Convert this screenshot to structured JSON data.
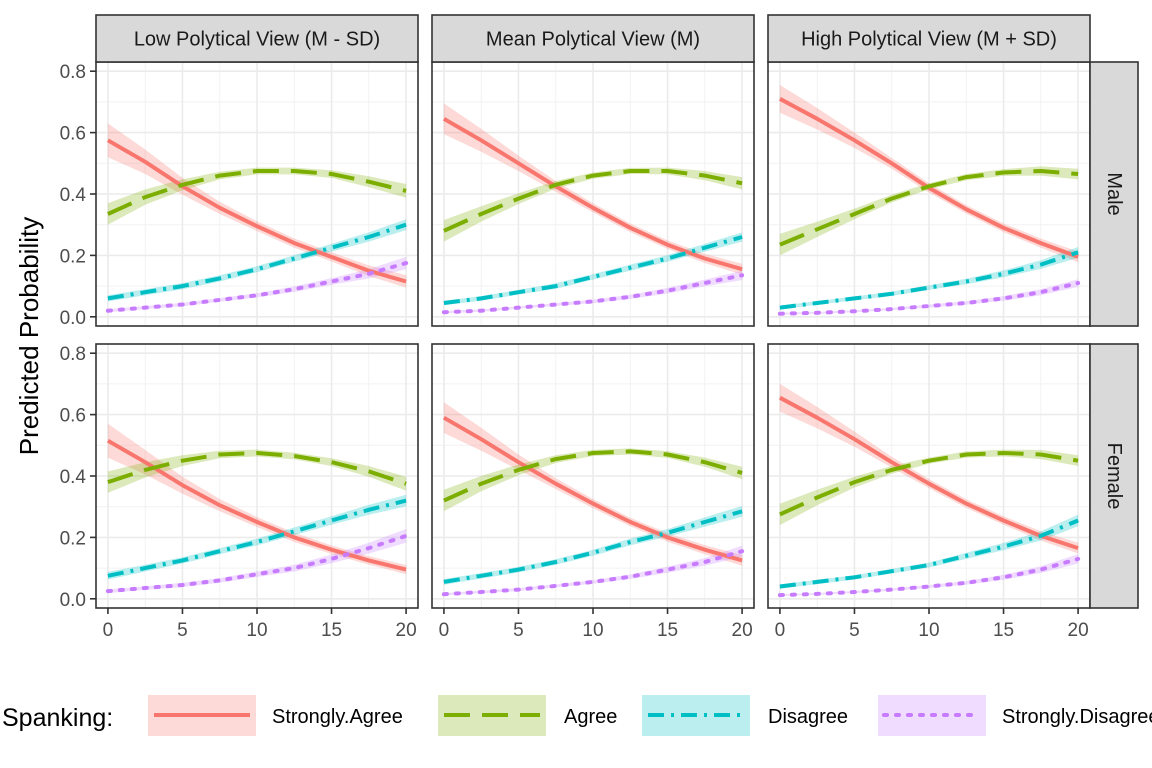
{
  "chart_data": {
    "type": "line",
    "ylabel": "Predicted Probability",
    "xlabel": "",
    "xlim": [
      -0.8,
      20.8
    ],
    "ylim": [
      -0.03,
      0.83
    ],
    "x_ticks": [
      0,
      5,
      10,
      15,
      20
    ],
    "y_ticks": [
      0.0,
      0.2,
      0.4,
      0.6,
      0.8
    ],
    "y_tick_labels": [
      "0.0",
      "0.2",
      "0.4",
      "0.6",
      "0.8"
    ],
    "grid": true,
    "column_facets": [
      "Low Polytical View (M - SD)",
      "Mean Polytical View (M)",
      "High Polytical View (M + SD)"
    ],
    "row_facets": [
      "Male",
      "Female"
    ],
    "legend": {
      "title": "Spanking:",
      "position": "bottom",
      "entries": [
        "Strongly.Agree",
        "Agree",
        "Disagree",
        "Strongly.Disagree"
      ]
    },
    "series_styles": [
      {
        "key": "Strongly.Agree",
        "color": "#F8766D",
        "dash": "solid",
        "width": 4
      },
      {
        "key": "Agree",
        "color": "#7CAE00",
        "dash": "long-dash",
        "width": 4
      },
      {
        "key": "Disagree",
        "color": "#00BFC4",
        "dash": "dot-dash",
        "width": 4
      },
      {
        "key": "Strongly.Disagree",
        "color": "#C77CFF",
        "dash": "dotted",
        "width": 4
      }
    ],
    "x": [
      0,
      2.5,
      5,
      7.5,
      10,
      12.5,
      15,
      17.5,
      20
    ],
    "panels": [
      {
        "row": "Male",
        "col": "Low Polytical View (M - SD)",
        "series": [
          {
            "name": "Strongly.Agree",
            "values": [
              0.575,
              0.505,
              0.425,
              0.355,
              0.295,
              0.24,
              0.195,
              0.15,
              0.115
            ],
            "ci_width": [
              0.11,
              0.08,
              0.055,
              0.04,
              0.032,
              0.03,
              0.03,
              0.035,
              0.04
            ]
          },
          {
            "name": "Agree",
            "values": [
              0.335,
              0.39,
              0.43,
              0.46,
              0.475,
              0.475,
              0.465,
              0.44,
              0.41
            ],
            "ci_width": [
              0.07,
              0.05,
              0.035,
              0.025,
              0.022,
              0.022,
              0.025,
              0.035,
              0.045
            ]
          },
          {
            "name": "Disagree",
            "values": [
              0.06,
              0.08,
              0.1,
              0.125,
              0.155,
              0.19,
              0.225,
              0.26,
              0.3
            ],
            "ci_width": [
              0.02,
              0.02,
              0.02,
              0.02,
              0.02,
              0.022,
              0.025,
              0.03,
              0.035
            ]
          },
          {
            "name": "Strongly.Disagree",
            "values": [
              0.02,
              0.03,
              0.04,
              0.055,
              0.07,
              0.09,
              0.115,
              0.14,
              0.175
            ],
            "ci_width": [
              0.01,
              0.01,
              0.012,
              0.012,
              0.014,
              0.018,
              0.022,
              0.03,
              0.04
            ]
          }
        ]
      },
      {
        "row": "Male",
        "col": "Mean Polytical View (M)",
        "series": [
          {
            "name": "Strongly.Agree",
            "values": [
              0.645,
              0.575,
              0.5,
              0.425,
              0.355,
              0.29,
              0.235,
              0.19,
              0.155
            ],
            "ci_width": [
              0.1,
              0.075,
              0.05,
              0.035,
              0.03,
              0.028,
              0.028,
              0.03,
              0.035
            ]
          },
          {
            "name": "Agree",
            "values": [
              0.28,
              0.335,
              0.385,
              0.43,
              0.46,
              0.475,
              0.475,
              0.46,
              0.435
            ],
            "ci_width": [
              0.07,
              0.05,
              0.035,
              0.025,
              0.02,
              0.02,
              0.022,
              0.03,
              0.04
            ]
          },
          {
            "name": "Disagree",
            "values": [
              0.045,
              0.06,
              0.08,
              0.1,
              0.13,
              0.16,
              0.19,
              0.225,
              0.26
            ],
            "ci_width": [
              0.015,
              0.015,
              0.015,
              0.018,
              0.018,
              0.02,
              0.022,
              0.025,
              0.03
            ]
          },
          {
            "name": "Strongly.Disagree",
            "values": [
              0.015,
              0.02,
              0.03,
              0.04,
              0.05,
              0.065,
              0.085,
              0.11,
              0.135
            ],
            "ci_width": [
              0.008,
              0.008,
              0.008,
              0.01,
              0.012,
              0.014,
              0.018,
              0.022,
              0.03
            ]
          }
        ]
      },
      {
        "row": "Male",
        "col": "High Polytical View (M + SD)",
        "series": [
          {
            "name": "Strongly.Agree",
            "values": [
              0.71,
              0.645,
              0.575,
              0.5,
              0.42,
              0.35,
              0.29,
              0.24,
              0.195
            ],
            "ci_width": [
              0.09,
              0.07,
              0.05,
              0.035,
              0.03,
              0.028,
              0.028,
              0.03,
              0.035
            ]
          },
          {
            "name": "Agree",
            "values": [
              0.235,
              0.285,
              0.335,
              0.385,
              0.425,
              0.455,
              0.47,
              0.475,
              0.465
            ],
            "ci_width": [
              0.07,
              0.05,
              0.035,
              0.025,
              0.02,
              0.02,
              0.022,
              0.03,
              0.035
            ]
          },
          {
            "name": "Disagree",
            "values": [
              0.03,
              0.045,
              0.06,
              0.075,
              0.095,
              0.115,
              0.14,
              0.17,
              0.21
            ],
            "ci_width": [
              0.012,
              0.012,
              0.012,
              0.014,
              0.015,
              0.018,
              0.022,
              0.028,
              0.035
            ]
          },
          {
            "name": "Strongly.Disagree",
            "values": [
              0.01,
              0.013,
              0.018,
              0.025,
              0.035,
              0.045,
              0.06,
              0.08,
              0.11
            ],
            "ci_width": [
              0.006,
              0.006,
              0.006,
              0.008,
              0.01,
              0.012,
              0.015,
              0.02,
              0.025
            ]
          }
        ]
      },
      {
        "row": "Female",
        "col": "Low Polytical View (M - SD)",
        "series": [
          {
            "name": "Strongly.Agree",
            "values": [
              0.515,
              0.445,
              0.37,
              0.305,
              0.25,
              0.2,
              0.16,
              0.125,
              0.095
            ],
            "ci_width": [
              0.11,
              0.08,
              0.055,
              0.04,
              0.032,
              0.03,
              0.028,
              0.028,
              0.03
            ]
          },
          {
            "name": "Agree",
            "values": [
              0.38,
              0.42,
              0.45,
              0.47,
              0.475,
              0.465,
              0.445,
              0.415,
              0.375
            ],
            "ci_width": [
              0.07,
              0.05,
              0.035,
              0.025,
              0.022,
              0.022,
              0.025,
              0.035,
              0.045
            ]
          },
          {
            "name": "Disagree",
            "values": [
              0.075,
              0.1,
              0.125,
              0.155,
              0.185,
              0.22,
              0.255,
              0.29,
              0.32
            ],
            "ci_width": [
              0.025,
              0.022,
              0.02,
              0.02,
              0.022,
              0.025,
              0.028,
              0.032,
              0.038
            ]
          },
          {
            "name": "Strongly.Disagree",
            "values": [
              0.025,
              0.035,
              0.045,
              0.06,
              0.08,
              0.1,
              0.13,
              0.165,
              0.205
            ],
            "ci_width": [
              0.012,
              0.012,
              0.014,
              0.015,
              0.018,
              0.022,
              0.028,
              0.035,
              0.045
            ]
          }
        ]
      },
      {
        "row": "Female",
        "col": "Mean Polytical View (M)",
        "series": [
          {
            "name": "Strongly.Agree",
            "values": [
              0.59,
              0.52,
              0.445,
              0.375,
              0.31,
              0.25,
              0.2,
              0.16,
              0.125
            ],
            "ci_width": [
              0.1,
              0.075,
              0.05,
              0.035,
              0.03,
              0.028,
              0.028,
              0.03,
              0.035
            ]
          },
          {
            "name": "Agree",
            "values": [
              0.32,
              0.375,
              0.42,
              0.455,
              0.475,
              0.48,
              0.47,
              0.445,
              0.41
            ],
            "ci_width": [
              0.07,
              0.05,
              0.035,
              0.025,
              0.02,
              0.02,
              0.022,
              0.03,
              0.04
            ]
          },
          {
            "name": "Disagree",
            "values": [
              0.055,
              0.075,
              0.095,
              0.12,
              0.15,
              0.185,
              0.215,
              0.25,
              0.285
            ],
            "ci_width": [
              0.018,
              0.018,
              0.018,
              0.018,
              0.02,
              0.022,
              0.025,
              0.03,
              0.035
            ]
          },
          {
            "name": "Strongly.Disagree",
            "values": [
              0.015,
              0.022,
              0.03,
              0.042,
              0.055,
              0.072,
              0.095,
              0.12,
              0.155
            ],
            "ci_width": [
              0.008,
              0.008,
              0.01,
              0.01,
              0.012,
              0.015,
              0.02,
              0.025,
              0.035
            ]
          }
        ]
      },
      {
        "row": "Female",
        "col": "High Polytical View (M + SD)",
        "series": [
          {
            "name": "Strongly.Agree",
            "values": [
              0.655,
              0.59,
              0.52,
              0.445,
              0.375,
              0.31,
              0.255,
              0.205,
              0.165
            ],
            "ci_width": [
              0.09,
              0.07,
              0.05,
              0.035,
              0.03,
              0.028,
              0.028,
              0.03,
              0.035
            ]
          },
          {
            "name": "Agree",
            "values": [
              0.275,
              0.33,
              0.38,
              0.42,
              0.45,
              0.47,
              0.475,
              0.47,
              0.45
            ],
            "ci_width": [
              0.07,
              0.05,
              0.035,
              0.025,
              0.02,
              0.02,
              0.022,
              0.03,
              0.035
            ]
          },
          {
            "name": "Disagree",
            "values": [
              0.04,
              0.055,
              0.07,
              0.09,
              0.11,
              0.14,
              0.17,
              0.205,
              0.255
            ],
            "ci_width": [
              0.014,
              0.014,
              0.014,
              0.015,
              0.016,
              0.02,
              0.024,
              0.03,
              0.038
            ]
          },
          {
            "name": "Strongly.Disagree",
            "values": [
              0.012,
              0.016,
              0.022,
              0.03,
              0.04,
              0.052,
              0.07,
              0.095,
              0.13
            ],
            "ci_width": [
              0.006,
              0.006,
              0.007,
              0.008,
              0.01,
              0.012,
              0.016,
              0.022,
              0.03
            ]
          }
        ]
      }
    ]
  }
}
